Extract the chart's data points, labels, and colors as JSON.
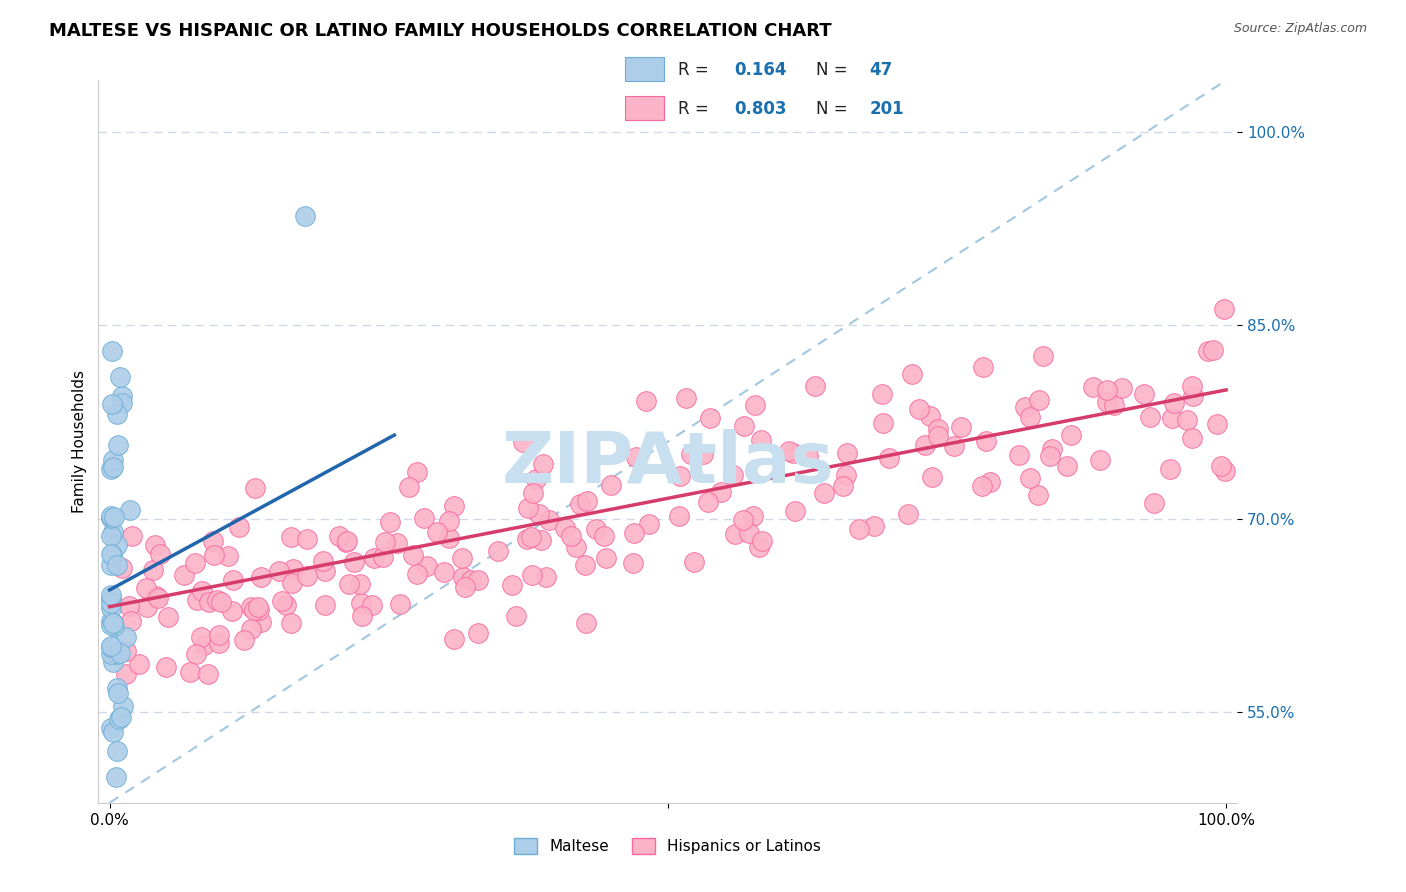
{
  "title": "MALTESE VS HISPANIC OR LATINO FAMILY HOUSEHOLDS CORRELATION CHART",
  "source_text": "Source: ZipAtlas.com",
  "ylabel": "Family Households",
  "watermark": "ZIPAtlas",
  "x_min": 0.0,
  "x_max": 1.0,
  "y_min": 0.48,
  "y_max": 1.04,
  "y_ticks": [
    0.55,
    0.7,
    0.85,
    1.0
  ],
  "y_tick_labels": [
    "55.0%",
    "70.0%",
    "85.0%",
    "100.0%"
  ],
  "legend_blue_label": "Maltese",
  "legend_pink_label": "Hispanics or Latinos",
  "R_blue": 0.164,
  "N_blue": 47,
  "R_pink": 0.803,
  "N_pink": 201,
  "blue_color": "#aecde8",
  "blue_edge": "#6baed6",
  "pink_color": "#fbb4c7",
  "pink_edge": "#f768a1",
  "blue_line_color": "#2166ac",
  "pink_line_color": "#d63c6b",
  "ref_line_color": "#7ab0d4",
  "title_fontsize": 13,
  "label_fontsize": 11,
  "tick_fontsize": 11,
  "watermark_fontsize": 52,
  "watermark_color": "#c8dff0",
  "legend_box_color": "#f5f5ff",
  "legend_border_color": "#cccccc"
}
